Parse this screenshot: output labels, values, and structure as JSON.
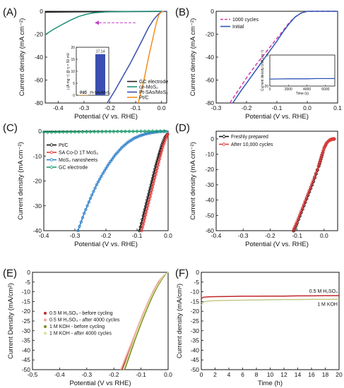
{
  "chart_data": [
    {
      "panel": "(A)",
      "type": "line",
      "xlabel": "Potential (V vs. RHE)",
      "ylabel": "Current density (mA cm⁻²)",
      "xlim": [
        -0.45,
        0.02
      ],
      "ylim": [
        -80,
        0
      ],
      "xticks": [
        "-0.4",
        "-0.3",
        "-0.2",
        "-0.1",
        "0.0"
      ],
      "yticks": [
        "0",
        "-20",
        "-40",
        "-60",
        "-80"
      ],
      "legend_position": "lower-right",
      "series": [
        {
          "name": "GC electrode",
          "color": "#222222",
          "x": [
            -0.45,
            -0.3,
            -0.15,
            0.0
          ],
          "y": [
            -0.8,
            -0.5,
            -0.3,
            -0.1
          ]
        },
        {
          "name": "ce-MoS₂",
          "color": "#1a8f7a",
          "x": [
            -0.45,
            -0.42,
            -0.38,
            -0.35,
            -0.32,
            -0.29,
            -0.26,
            -0.22,
            -0.18,
            -0.14,
            0.0
          ],
          "y": [
            -20.5,
            -16,
            -11,
            -7.5,
            -4.5,
            -2.5,
            -1.3,
            -0.6,
            -0.3,
            -0.15,
            0
          ]
        },
        {
          "name": "Pt-SAs/MoS₂",
          "color": "#3a4fb0",
          "x": [
            -0.21,
            -0.18,
            -0.15,
            -0.12,
            -0.09,
            -0.07,
            -0.05,
            -0.03,
            -0.01,
            0.0,
            0.02
          ],
          "y": [
            -80,
            -69,
            -57,
            -45,
            -32,
            -23,
            -14,
            -7,
            -2,
            -0.5,
            0
          ]
        },
        {
          "name": "Pt/C",
          "color": "#f28e1c",
          "x": [
            -0.09,
            -0.07,
            -0.05,
            -0.04,
            -0.03,
            -0.02,
            -0.01,
            0.0,
            0.01
          ],
          "y": [
            -80,
            -62,
            -40,
            -30,
            -20,
            -10,
            -3,
            -0.5,
            0
          ]
        }
      ],
      "annotation_arrow": "left-pointing dashed arrow",
      "inset": {
        "type": "bar",
        "ylabel": "j (A mg⁻¹) @ η = 50 mV",
        "ylim": [
          0,
          20
        ],
        "yticks": [
          "0",
          "5",
          "10",
          "15",
          "20"
        ],
        "categories": [
          "Pt/C",
          "Pt-SAs/MoS₂"
        ],
        "values": [
          0.15,
          17.14
        ],
        "value_labels": [
          "0.15",
          "17.14"
        ],
        "colors": [
          "#f28e1c",
          "#3a4fb0"
        ]
      }
    },
    {
      "panel": "(B)",
      "type": "line",
      "xlabel": "Potential (V vs. RHE)",
      "ylabel": "Current density (mA cm⁻²)",
      "xlim": [
        -0.3,
        0.1
      ],
      "ylim": [
        -80,
        0
      ],
      "xticks": [
        "-0.3",
        "-0.2",
        "-0.1",
        "0.0",
        "0.1"
      ],
      "yticks": [
        "0",
        "-20",
        "-40",
        "-60",
        "-80"
      ],
      "legend_position": "top-left",
      "series": [
        {
          "name": "1000 cycles",
          "color": "#d63aa8",
          "dashed": true,
          "x": [
            -0.255,
            -0.23,
            -0.2,
            -0.17,
            -0.14,
            -0.11,
            -0.08,
            -0.06,
            -0.04,
            -0.02,
            0.0,
            0.1
          ],
          "y": [
            -80,
            -70,
            -58,
            -47,
            -37,
            -27,
            -17,
            -10,
            -5,
            -1.5,
            0,
            0
          ]
        },
        {
          "name": "Initial",
          "color": "#2f57b8",
          "x": [
            -0.245,
            -0.22,
            -0.19,
            -0.16,
            -0.13,
            -0.1,
            -0.08,
            -0.06,
            -0.04,
            -0.02,
            0.0,
            0.1
          ],
          "y": [
            -80,
            -70,
            -59,
            -48,
            -37,
            -26,
            -18,
            -11,
            -5,
            -1.5,
            0,
            0
          ]
        }
      ],
      "inset": {
        "type": "line",
        "xlabel": "Time (s)",
        "ylabel": "Current density (mA cm⁻²)",
        "xlim": [
          0,
          7000
        ],
        "ylim": [
          -20,
          0
        ],
        "xticks": [
          "0",
          "2000",
          "4000",
          "6000"
        ],
        "yticks": [
          "0",
          "-20"
        ],
        "series": [
          {
            "name": "",
            "color": "#2f57b8",
            "x": [
              0,
              1000,
              2000,
              3000,
              4000,
              5000,
              6000,
              7000
            ],
            "y": [
              -15.5,
              -15.4,
              -15.3,
              -15.3,
              -15.3,
              -15.2,
              -15.2,
              -15.2
            ]
          }
        ]
      }
    },
    {
      "panel": "(C)",
      "type": "line",
      "xlabel": "Potential (V vs. RHE)",
      "ylabel": "Current density (mA cm⁻²)",
      "xlim": [
        -0.4,
        0.0
      ],
      "ylim": [
        -40,
        0
      ],
      "xticks": [
        "-0.4",
        "-0.3",
        "-0.2",
        "-0.1",
        "0.0"
      ],
      "yticks": [
        "0",
        "-10",
        "-20",
        "-30",
        "-40"
      ],
      "legend_position": "top-left",
      "series": [
        {
          "name": "Pt/C",
          "color": "#111111",
          "marker": "circle",
          "x": [
            -0.092,
            -0.08,
            -0.07,
            -0.06,
            -0.05,
            -0.04,
            -0.03,
            -0.02,
            -0.01,
            0.0
          ],
          "y": [
            -40,
            -34,
            -29,
            -24,
            -19,
            -14,
            -9.5,
            -5.5,
            -2.5,
            -0.8
          ]
        },
        {
          "name": "SA Co-D 1T MoS₂",
          "color": "#e03c3c",
          "marker": "circle",
          "x": [
            -0.085,
            -0.075,
            -0.065,
            -0.055,
            -0.045,
            -0.035,
            -0.025,
            -0.015,
            -0.005,
            0.0
          ],
          "y": [
            -40,
            -35,
            -30,
            -25,
            -20,
            -15,
            -10,
            -5.5,
            -2,
            -1
          ]
        },
        {
          "name": "MoS₂ nanosheets",
          "color": "#2f7fc9",
          "marker": "circle",
          "x": [
            -0.29,
            -0.27,
            -0.25,
            -0.23,
            -0.21,
            -0.19,
            -0.17,
            -0.15,
            -0.13,
            -0.11,
            -0.09,
            -0.07,
            -0.05,
            -0.03,
            0.0
          ],
          "y": [
            -40,
            -33,
            -27,
            -21.5,
            -17,
            -13,
            -9.5,
            -6.7,
            -4.5,
            -2.9,
            -1.8,
            -1.0,
            -0.5,
            -0.2,
            0
          ]
        },
        {
          "name": "GC electrode",
          "color": "#1e9e6e",
          "marker": "diamond",
          "x": [
            -0.4,
            -0.35,
            -0.3,
            -0.25,
            -0.2,
            -0.15,
            -0.1,
            -0.05,
            0.0
          ],
          "y": [
            -0.4,
            -0.3,
            -0.25,
            -0.2,
            -0.15,
            -0.1,
            -0.05,
            0,
            0
          ]
        }
      ]
    },
    {
      "panel": "(D)",
      "type": "line",
      "xlabel": "Potential (V vs. RHE)",
      "ylabel": "Current density (mA cm⁻²)",
      "xlim": [
        -0.4,
        0.05
      ],
      "ylim": [
        -60,
        5
      ],
      "xticks": [
        "-0.4",
        "-0.3",
        "-0.2",
        "-0.1",
        "0.0"
      ],
      "yticks": [
        "0",
        "-10",
        "-20",
        "-30",
        "-40",
        "-50",
        "-60"
      ],
      "legend_position": "top-left",
      "series": [
        {
          "name": "Freshly prepared",
          "color": "#111111",
          "marker": "diamond",
          "x": [
            -0.112,
            -0.1,
            -0.08,
            -0.06,
            -0.04,
            -0.02,
            -0.01,
            0.0,
            0.01,
            0.02,
            0.03,
            0.04
          ],
          "y": [
            -60,
            -55,
            -46,
            -37,
            -28,
            -18,
            -12,
            -6,
            -2.5,
            -0.8,
            -0.2,
            0
          ]
        },
        {
          "name": "After 10,000 cycles",
          "color": "#e03c3c",
          "marker": "diamond",
          "x": [
            -0.115,
            -0.1,
            -0.08,
            -0.06,
            -0.04,
            -0.02,
            -0.01,
            0.0,
            0.01,
            0.02,
            0.03,
            0.04
          ],
          "y": [
            -60,
            -54,
            -45,
            -36,
            -27,
            -17.5,
            -11.5,
            -6,
            -2.5,
            -0.8,
            -0.2,
            0
          ]
        }
      ]
    },
    {
      "panel": "(E)",
      "type": "line",
      "xlabel": "Potential (V vs RHE)",
      "ylabel": "Current Density (mA/cm²)",
      "xlim": [
        -0.5,
        0.0
      ],
      "ylim": [
        -50,
        0
      ],
      "xticks": [
        "-0.5",
        "-0.4",
        "-0.3",
        "-0.2",
        "-0.1",
        "0.0"
      ],
      "yticks": [
        "0",
        "-5",
        "-10",
        "-15",
        "-20",
        "-25",
        "-30",
        "-35",
        "-40",
        "-45",
        "-50"
      ],
      "legend_position": "left",
      "series": [
        {
          "name": "0.5 M H₂SO₄ - before cycling",
          "color": "#c0262c",
          "x": [
            -0.17,
            -0.15,
            -0.13,
            -0.11,
            -0.09,
            -0.07,
            -0.05,
            -0.03,
            -0.015,
            0.0
          ],
          "y": [
            -50,
            -43,
            -36,
            -29,
            -22,
            -15,
            -9,
            -4,
            -1.5,
            0
          ]
        },
        {
          "name": "0.5 M H₂SO₄ - after 4000 cycles",
          "color": "#f2a6a0",
          "x": [
            -0.175,
            -0.155,
            -0.135,
            -0.115,
            -0.095,
            -0.075,
            -0.055,
            -0.035,
            -0.015,
            0.0
          ],
          "y": [
            -50,
            -43,
            -36,
            -29,
            -22,
            -15.5,
            -9.5,
            -4.5,
            -1.5,
            0
          ]
        },
        {
          "name": "1 M KOH - before cycling",
          "color": "#7a8a1e",
          "x": [
            -0.16,
            -0.14,
            -0.12,
            -0.1,
            -0.08,
            -0.06,
            -0.04,
            -0.025,
            -0.01,
            0.0
          ],
          "y": [
            -50,
            -42,
            -34,
            -26.5,
            -19.5,
            -13,
            -7.5,
            -4,
            -1,
            0
          ]
        },
        {
          "name": "1 M KOH - after 4000 cycles",
          "color": "#d6e29a",
          "x": [
            -0.165,
            -0.145,
            -0.125,
            -0.105,
            -0.085,
            -0.065,
            -0.045,
            -0.03,
            -0.015,
            0.0
          ],
          "y": [
            -50,
            -42,
            -34.5,
            -27,
            -20,
            -13.5,
            -8,
            -4.5,
            -1.5,
            0
          ]
        }
      ]
    },
    {
      "panel": "(F)",
      "type": "line",
      "xlabel": "Time (h)",
      "ylabel": "Current density (mA/cm²)",
      "xlim": [
        0,
        20
      ],
      "ylim": [
        -50,
        0
      ],
      "xticks": [
        "0",
        "2",
        "4",
        "6",
        "8",
        "10",
        "12",
        "14",
        "16",
        "18",
        "20"
      ],
      "yticks": [
        "0",
        "-5",
        "-10",
        "-15",
        "-20",
        "-25",
        "-30",
        "-35",
        "-40",
        "-45",
        "-50"
      ],
      "series": [
        {
          "name": "0.5 M H₂SO₄",
          "color": "#c0262c",
          "x": [
            0,
            0.3,
            1,
            2,
            4,
            6,
            8,
            10,
            12,
            14,
            16,
            18,
            20
          ],
          "y": [
            -13.5,
            -12.8,
            -12.6,
            -12.5,
            -12.4,
            -12.3,
            -12.3,
            -12.2,
            -12.2,
            -12.1,
            -12.1,
            -12.0,
            -12.0
          ]
        },
        {
          "name": "1 M KOH",
          "color": "#c4c98a",
          "x": [
            0,
            0.3,
            1,
            2,
            4,
            6,
            8,
            10,
            12,
            14,
            16,
            18,
            20
          ],
          "y": [
            -17,
            -15.2,
            -14.8,
            -14.6,
            -14.4,
            -14.3,
            -14.2,
            -14.1,
            -14.0,
            -14.0,
            -13.9,
            -13.9,
            -13.8
          ]
        }
      ]
    }
  ]
}
